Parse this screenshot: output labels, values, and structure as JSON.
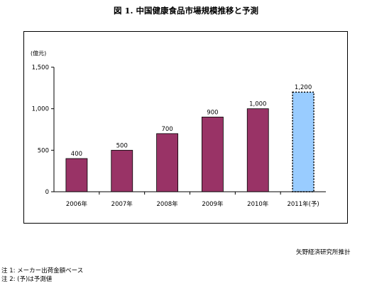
{
  "title": "図 1.  中国健康食品市場規模推移と予測",
  "source": "矢野経済研究所推計",
  "notes": [
    "注 1:  メーカー出荷金額ベース",
    "注 2:  (予)は予測値"
  ],
  "chart_data": {
    "type": "bar",
    "unit_label": "(億元)",
    "categories": [
      "2006年",
      "2007年",
      "2008年",
      "2009年",
      "2010年",
      "2011年(予)"
    ],
    "values": [
      400,
      500,
      700,
      900,
      1000,
      1200
    ],
    "value_labels": [
      "400",
      "500",
      "700",
      "900",
      "1,000",
      "1,200"
    ],
    "forecast": [
      false,
      false,
      false,
      false,
      false,
      true
    ],
    "ylim": [
      0,
      1500
    ],
    "yticks": [
      0,
      500,
      1000,
      1500
    ],
    "ytick_labels": [
      "0",
      "500",
      "1,000",
      "1,500"
    ],
    "colors": {
      "actual": "#993366",
      "forecast": "#99ccff"
    },
    "grid": false,
    "legend": "none"
  }
}
